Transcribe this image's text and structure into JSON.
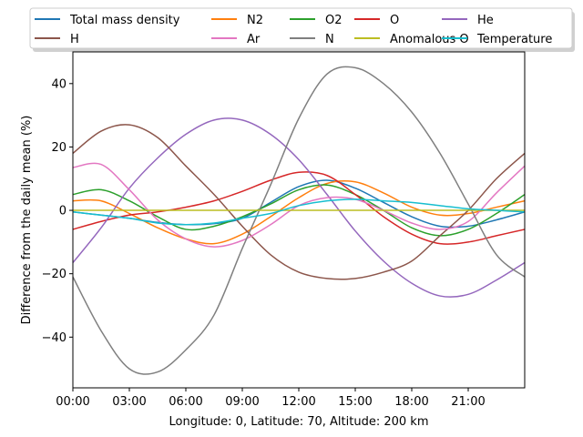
{
  "chart_data": {
    "type": "line",
    "title": "",
    "xlabel": "Longitude: 0, Latitude: 70, Altitude: 200 km",
    "ylabel": "Difference from the daily mean (%)",
    "xlim": [
      0,
      24
    ],
    "ylim": [
      -56,
      50
    ],
    "x_ticks": [
      {
        "value": 0,
        "label": "00:00"
      },
      {
        "value": 3,
        "label": "03:00"
      },
      {
        "value": 6,
        "label": "06:00"
      },
      {
        "value": 9,
        "label": "09:00"
      },
      {
        "value": 12,
        "label": "12:00"
      },
      {
        "value": 15,
        "label": "15:00"
      },
      {
        "value": 18,
        "label": "18:00"
      },
      {
        "value": 21,
        "label": "21:00"
      }
    ],
    "y_ticks": [
      {
        "value": -40,
        "label": "−40"
      },
      {
        "value": -20,
        "label": "−20"
      },
      {
        "value": 0,
        "label": "0"
      },
      {
        "value": 20,
        "label": "20"
      },
      {
        "value": 40,
        "label": "40"
      }
    ],
    "grid": false,
    "legend_position": "top, above plot (5 columns)",
    "x": [
      0,
      1.5,
      3,
      4.5,
      6,
      7.5,
      9,
      10.5,
      12,
      13.5,
      15,
      16.5,
      18,
      19.5,
      21,
      22.5,
      24
    ],
    "series": [
      {
        "name": "Total mass density",
        "color": "#1f77b4",
        "values": [
          -0.5,
          -1.5,
          -2.5,
          -3.8,
          -4.5,
          -4.2,
          -2.5,
          2.5,
          7.5,
          9.5,
          7,
          2.5,
          -2,
          -5,
          -5,
          -3,
          -0.5
        ]
      },
      {
        "name": "N2",
        "color": "#ff7f0e",
        "values": [
          3,
          3,
          -1,
          -5.5,
          -9,
          -10.5,
          -7.5,
          -2,
          4,
          8.5,
          9,
          5.5,
          1,
          -1.5,
          -1,
          1,
          3
        ]
      },
      {
        "name": "O2",
        "color": "#2ca02c",
        "values": [
          5,
          6.5,
          3,
          -2,
          -6,
          -5,
          -2,
          2,
          6.5,
          8,
          5,
          0,
          -5.5,
          -8,
          -6,
          -1,
          5
        ]
      },
      {
        "name": "O",
        "color": "#d62728",
        "values": [
          -6,
          -3.5,
          -1.5,
          -0.5,
          1,
          3,
          6,
          9.5,
          12,
          11,
          5,
          -2,
          -7.5,
          -10.5,
          -10,
          -8,
          -6
        ]
      },
      {
        "name": "He",
        "color": "#9467bd",
        "values": [
          -16.5,
          -5.5,
          7,
          16.5,
          24,
          28.5,
          28.5,
          24,
          16,
          5,
          -6.5,
          -16,
          -23,
          -27,
          -26.5,
          -22,
          -16.5
        ]
      },
      {
        "name": "H",
        "color": "#8c564b",
        "values": [
          18,
          25,
          27,
          23,
          14,
          5,
          -5,
          -14,
          -19.5,
          -21.5,
          -21.5,
          -19.5,
          -16,
          -8,
          0,
          10,
          18
        ]
      },
      {
        "name": "Ar",
        "color": "#e377c2",
        "values": [
          13.5,
          14.5,
          6.5,
          -3,
          -9,
          -11.5,
          -9.5,
          -4.5,
          1.5,
          4,
          3.5,
          0,
          -4,
          -6,
          -3.5,
          5.5,
          14
        ]
      },
      {
        "name": "N",
        "color": "#7f7f7f",
        "values": [
          -21,
          -38,
          -50,
          -51,
          -44,
          -33,
          -12,
          8,
          29,
          43,
          45,
          40,
          31,
          18,
          2,
          -14,
          -21
        ]
      },
      {
        "name": "Anomalous O",
        "color": "#bcbd22",
        "values": [
          0,
          0,
          0,
          0,
          0,
          0,
          0,
          0,
          0,
          0,
          0,
          0,
          0,
          0,
          0,
          0,
          0
        ]
      },
      {
        "name": "Temperature",
        "color": "#17becf",
        "values": [
          -0.5,
          -1.5,
          -2.5,
          -4,
          -4.5,
          -4,
          -2.5,
          -1,
          1.5,
          3,
          3.5,
          3,
          2.5,
          1.5,
          0.5,
          0,
          -0.5
        ]
      }
    ]
  }
}
